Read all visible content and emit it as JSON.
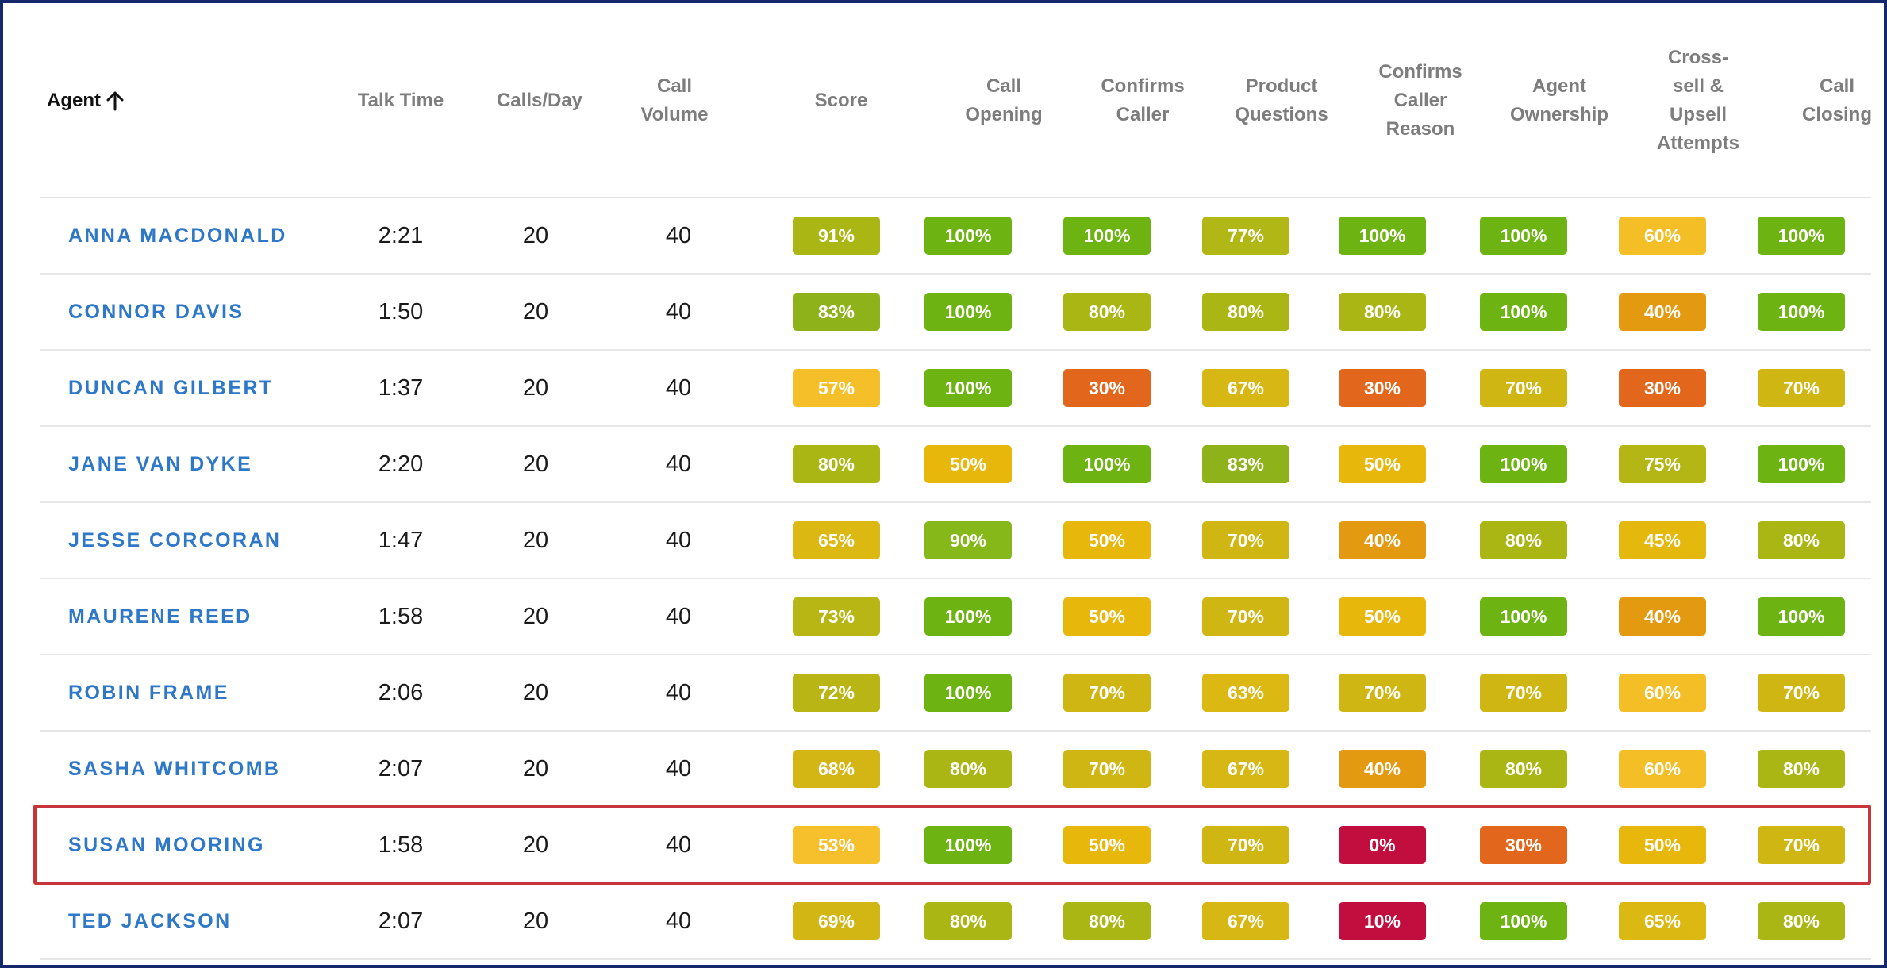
{
  "header": {
    "agent": "Agent",
    "sort_icon": "arrow-up-icon",
    "talk_time": "Talk Time",
    "calls_day": "Calls/Day",
    "call_volume": [
      "Call",
      "Volume"
    ],
    "score": "Score",
    "call_opening": [
      "Call",
      "Opening"
    ],
    "confirms_caller": [
      "Confirms",
      "Caller"
    ],
    "product_questions": [
      "Product",
      "Questions"
    ],
    "confirms_caller_reason": [
      "Confirms",
      "Caller",
      "Reason"
    ],
    "agent_ownership": [
      "Agent",
      "Ownership"
    ],
    "cross_sell": [
      "Cross-",
      "sell &",
      "Upsell",
      "Attempts"
    ],
    "call_closing": [
      "Call",
      "Closing"
    ]
  },
  "colors": {
    "100": "#6db312",
    "90": "#86b81a",
    "83": "#8eb31a",
    "80": "#aab613",
    "77": "#b1b714",
    "75": "#b3b614",
    "73": "#b7b614",
    "72": "#b8b514",
    "70": "#d0b613",
    "69": "#d2b614",
    "68": "#d3b514",
    "67": "#d7b713",
    "65": "#dcb812",
    "63": "#dcb813",
    "60": "#f3be26",
    "57": "#f5bf2a",
    "53": "#f6c02c",
    "50": "#e7b70b",
    "45": "#e4b80d",
    "40": "#e39a10",
    "30": "#e2661c",
    "10": "#c10e3e",
    "0": "#c10e3e"
  },
  "rows": [
    {
      "name": "ANNA MACDONALD",
      "talk_time": "2:21",
      "calls_day": "20",
      "call_volume": "40",
      "scores": [
        "91%",
        "100%",
        "100%",
        "77%",
        "100%",
        "100%",
        "60%",
        "100%"
      ]
    },
    {
      "name": "CONNOR DAVIS",
      "talk_time": "1:50",
      "calls_day": "20",
      "call_volume": "40",
      "scores": [
        "83%",
        "100%",
        "80%",
        "80%",
        "80%",
        "100%",
        "40%",
        "100%"
      ]
    },
    {
      "name": "DUNCAN GILBERT",
      "talk_time": "1:37",
      "calls_day": "20",
      "call_volume": "40",
      "scores": [
        "57%",
        "100%",
        "30%",
        "67%",
        "30%",
        "70%",
        "30%",
        "70%"
      ]
    },
    {
      "name": "JANE VAN DYKE",
      "talk_time": "2:20",
      "calls_day": "20",
      "call_volume": "40",
      "scores": [
        "80%",
        "50%",
        "100%",
        "83%",
        "50%",
        "100%",
        "75%",
        "100%"
      ]
    },
    {
      "name": "JESSE CORCORAN",
      "talk_time": "1:47",
      "calls_day": "20",
      "call_volume": "40",
      "scores": [
        "65%",
        "90%",
        "50%",
        "70%",
        "40%",
        "80%",
        "45%",
        "80%"
      ]
    },
    {
      "name": "MAURENE REED",
      "talk_time": "1:58",
      "calls_day": "20",
      "call_volume": "40",
      "scores": [
        "73%",
        "100%",
        "50%",
        "70%",
        "50%",
        "100%",
        "40%",
        "100%"
      ]
    },
    {
      "name": "ROBIN FRAME",
      "talk_time": "2:06",
      "calls_day": "20",
      "call_volume": "40",
      "scores": [
        "72%",
        "100%",
        "70%",
        "63%",
        "70%",
        "70%",
        "60%",
        "70%"
      ]
    },
    {
      "name": "SASHA WHITCOMB",
      "talk_time": "2:07",
      "calls_day": "20",
      "call_volume": "40",
      "scores": [
        "68%",
        "80%",
        "70%",
        "67%",
        "40%",
        "80%",
        "60%",
        "80%"
      ]
    },
    {
      "name": "SUSAN MOORING",
      "talk_time": "1:58",
      "calls_day": "20",
      "call_volume": "40",
      "scores": [
        "53%",
        "100%",
        "50%",
        "70%",
        "0%",
        "30%",
        "50%",
        "70%"
      ],
      "highlighted": true
    },
    {
      "name": "TED JACKSON",
      "talk_time": "2:07",
      "calls_day": "20",
      "call_volume": "40",
      "scores": [
        "69%",
        "80%",
        "80%",
        "67%",
        "10%",
        "100%",
        "65%",
        "80%"
      ]
    }
  ]
}
